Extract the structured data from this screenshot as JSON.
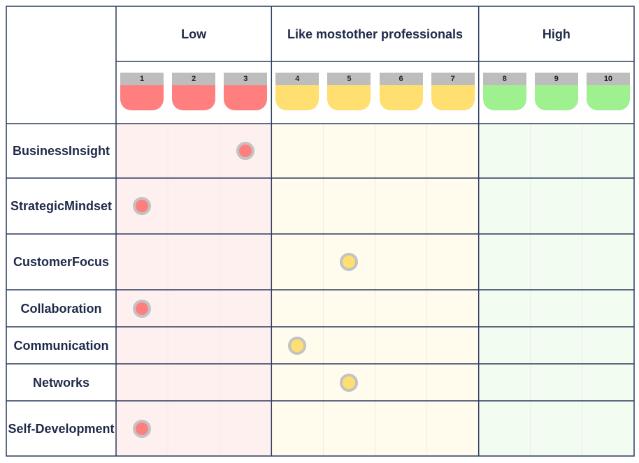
{
  "chart_data": {
    "type": "table",
    "bands": [
      {
        "label": "Low",
        "from": 1,
        "to": 3,
        "color": "#ff7f7f",
        "tint": "#fff0f0"
      },
      {
        "label": "Like most\nother professionals",
        "from": 4,
        "to": 7,
        "color": "#ffdf70",
        "tint": "#fffbed"
      },
      {
        "label": "High",
        "from": 8,
        "to": 10,
        "color": "#9ff08f",
        "tint": "#f3fcf1"
      }
    ],
    "scale": [
      "1",
      "2",
      "3",
      "4",
      "5",
      "6",
      "7",
      "8",
      "9",
      "10"
    ],
    "rows": [
      {
        "label": "Business\nInsight",
        "value": 3
      },
      {
        "label": "Strategic\nMindset",
        "value": 1
      },
      {
        "label": "Customer\nFocus",
        "value": 5
      },
      {
        "label": "Collaboration",
        "value": 1
      },
      {
        "label": "Communication",
        "value": 4
      },
      {
        "label": "Networks",
        "value": 5
      },
      {
        "label": "Self-\nDevelopment",
        "value": 1
      }
    ]
  }
}
